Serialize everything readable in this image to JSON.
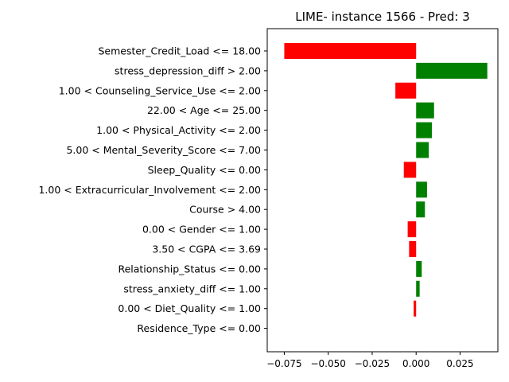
{
  "chart_data": {
    "type": "bar",
    "orientation": "horizontal",
    "title": "LIME- instance 1566 - Pred: 3",
    "xlabel": "",
    "ylabel": "",
    "categories": [
      "Semester_Credit_Load <= 18.00",
      "stress_depression_diff > 2.00",
      "1.00 < Counseling_Service_Use <= 2.00",
      "22.00 < Age <= 25.00",
      "1.00 < Physical_Activity <= 2.00",
      "5.00 < Mental_Severity_Score <= 7.00",
      "Sleep_Quality <= 0.00",
      "1.00 < Extracurricular_Involvement <= 2.00",
      "Course > 4.00",
      "0.00 < Gender <= 1.00",
      "3.50 < CGPA <= 3.69",
      "Relationship_Status <= 0.00",
      "stress_anxiety_diff <= 1.00",
      "0.00 < Diet_Quality <= 1.00",
      "Residence_Type <= 0.00"
    ],
    "values": [
      -0.075,
      0.0405,
      -0.0118,
      0.0102,
      0.009,
      0.0072,
      -0.007,
      0.0062,
      0.005,
      -0.0048,
      -0.004,
      0.0032,
      0.002,
      -0.0014,
      0.0
    ],
    "xlim": [
      -0.0847,
      0.0465
    ],
    "xticks": [
      -0.075,
      -0.05,
      -0.025,
      0.0,
      0.025
    ],
    "xtick_labels": [
      "−0.075",
      "−0.050",
      "−0.025",
      "0.000",
      "0.025"
    ],
    "colors": {
      "positive": "#008000",
      "negative": "#ff0000"
    },
    "grid": false,
    "legend": "none"
  }
}
